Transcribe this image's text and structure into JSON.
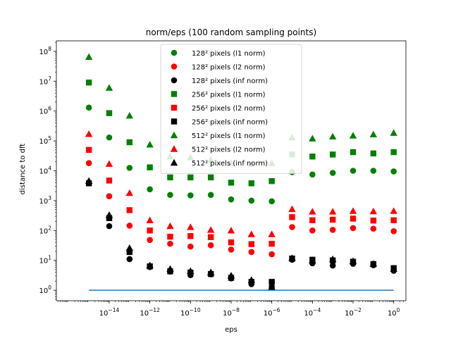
{
  "chart_data": {
    "type": "scatter",
    "title": "norm/eps (100 random sampling points)",
    "xlabel": "eps",
    "ylabel": "distance to dft",
    "xscale": "log",
    "yscale": "log",
    "xlim_exp": [
      -16.6,
      0.6
    ],
    "ylim_exp": [
      -0.35,
      8.35
    ],
    "x_tick_labels": [
      "10^-14",
      "10^-12",
      "10^-10",
      "10^-8",
      "10^-6",
      "10^-4",
      "10^-2",
      "10^0"
    ],
    "y_tick_labels": [
      "10^0",
      "10^1",
      "10^2",
      "10^3",
      "10^4",
      "10^5",
      "10^6",
      "10^7",
      "10^8"
    ],
    "grid": false,
    "legend_position": "top-center",
    "eps_x": [
      1e-15,
      1e-14,
      1e-13,
      1e-12,
      1e-11,
      1e-10,
      1e-09,
      1e-08,
      1e-07,
      1e-06,
      1e-05,
      0.0001,
      0.001,
      0.01,
      0.1,
      1
    ],
    "series": [
      {
        "name": "128² pixels (l1 norm)",
        "color": "#008000",
        "marker": "circle",
        "values": [
          1300000,
          130000,
          12500,
          2400,
          1550,
          1500,
          1550,
          1100,
          1000,
          950,
          9000,
          7500,
          8500,
          10000,
          10000,
          9500
        ]
      },
      {
        "name": "128² pixels (l2 norm)",
        "color": "#ff0000",
        "marker": "circle",
        "values": [
          18000,
          1400,
          145,
          48,
          36,
          29,
          32,
          23,
          19,
          16,
          130,
          100,
          105,
          120,
          115,
          95
        ]
      },
      {
        "name": "128² pixels (inf norm)",
        "color": "#000000",
        "marker": "circle",
        "values": [
          3900,
          140,
          11,
          6,
          4.2,
          3.2,
          3.4,
          2.5,
          1.6,
          1.3,
          10.5,
          8,
          6.7,
          7.7,
          6.9,
          4.5
        ]
      },
      {
        "name": "256² pixels (l1 norm)",
        "color": "#008000",
        "marker": "square",
        "values": [
          9000000,
          850000,
          90000,
          13000,
          6000,
          6000,
          6000,
          4000,
          3800,
          4500,
          35000,
          30000,
          35000,
          42000,
          38000,
          42000
        ]
      },
      {
        "name": "256² pixels (l2 norm)",
        "color": "#ff0000",
        "marker": "square",
        "values": [
          50000,
          4700,
          480,
          100,
          62,
          65,
          60,
          40,
          35,
          36,
          280,
          220,
          230,
          250,
          215,
          220
        ]
      },
      {
        "name": "256² pixels (inf norm)",
        "color": "#000000",
        "marker": "square",
        "values": [
          3800,
          260,
          19,
          6.3,
          4.3,
          3.9,
          3.5,
          2.6,
          1.9,
          1.9,
          11.5,
          10.5,
          10,
          9,
          7.5,
          5.5
        ]
      },
      {
        "name": "512² pixels (l1 norm)",
        "color": "#008000",
        "marker": "triangle",
        "values": [
          65000000,
          6000000,
          700000,
          75000,
          30000,
          28000,
          23000,
          18000,
          17000,
          18000,
          130000,
          120000,
          140000,
          150000,
          165000,
          185000
        ]
      },
      {
        "name": "512² pixels (l2 norm)",
        "color": "#ff0000",
        "marker": "triangle",
        "values": [
          170000,
          17000,
          1800,
          220,
          140,
          130,
          105,
          100,
          75,
          75,
          520,
          430,
          430,
          450,
          440,
          450
        ]
      },
      {
        "name": "512² pixels (inf norm)",
        "color": "#000000",
        "marker": "triangle",
        "values": [
          4600,
          330,
          26,
          6.8,
          5.2,
          4.4,
          4.0,
          3.1,
          2.2,
          1.3,
          12,
          10,
          11,
          9.5,
          7.7,
          5.2
        ]
      }
    ],
    "reference_line": {
      "color": "#1f77b4",
      "y": 1,
      "x_range": [
        1e-15,
        1
      ]
    }
  }
}
